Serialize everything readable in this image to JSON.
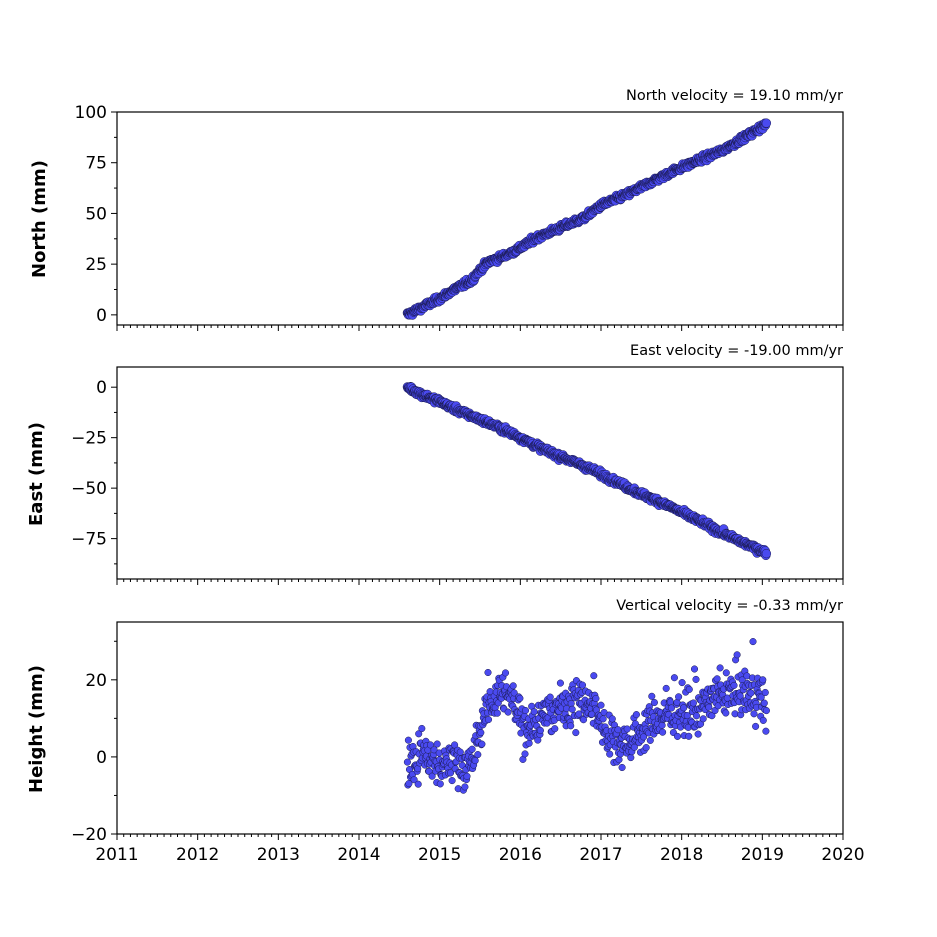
{
  "chart_data": [
    {
      "type": "scatter",
      "title": "North velocity = 19.10 mm/yr",
      "ylabel": "North (mm)",
      "xlim": [
        2011,
        2020
      ],
      "ylim": [
        -5,
        100
      ],
      "yticks": [
        0,
        25,
        50,
        75,
        100
      ],
      "ytick_labels": [
        "0",
        "25",
        "50",
        "75",
        "100"
      ],
      "marker_color": "#4a4af0",
      "series": [
        {
          "x": [
            2014.6,
            2014.8,
            2015.0,
            2015.2,
            2015.4,
            2015.45,
            2015.6,
            2015.8,
            2016.0,
            2016.2,
            2016.5,
            2016.8,
            2017.0,
            2017.3,
            2017.6,
            2017.9,
            2018.2,
            2018.5,
            2018.8,
            2019.05
          ],
          "y": [
            0,
            4,
            8,
            13,
            17,
            20,
            26,
            29,
            33,
            38,
            43,
            48,
            54,
            59,
            65,
            71,
            76,
            81,
            88,
            94
          ]
        }
      ]
    },
    {
      "type": "scatter",
      "title": "East velocity = -19.00 mm/yr",
      "ylabel": "East (mm)",
      "xlim": [
        2011,
        2020
      ],
      "ylim": [
        -95,
        10
      ],
      "yticks": [
        0,
        -25,
        -50,
        -75
      ],
      "ytick_labels": [
        "0",
        "−25",
        "−50",
        "−75"
      ],
      "marker_color": "#4a4af0",
      "series": [
        {
          "x": [
            2014.6,
            2014.8,
            2015.0,
            2015.2,
            2015.5,
            2015.8,
            2016.0,
            2016.3,
            2016.6,
            2016.9,
            2017.2,
            2017.5,
            2017.8,
            2018.1,
            2018.4,
            2018.7,
            2019.05
          ],
          "y": [
            0,
            -4,
            -7,
            -11,
            -16,
            -21,
            -25,
            -31,
            -36,
            -41,
            -47,
            -53,
            -58,
            -64,
            -70,
            -76,
            -82
          ]
        }
      ]
    },
    {
      "type": "scatter",
      "title": "Vertical velocity = -0.33 mm/yr",
      "ylabel": "Height (mm)",
      "xlabel": "",
      "xlim": [
        2011,
        2020
      ],
      "ylim": [
        -20,
        35
      ],
      "yticks": [
        -20,
        0,
        20
      ],
      "ytick_labels": [
        "−20",
        "0",
        "20"
      ],
      "xticks": [
        2011,
        2012,
        2013,
        2014,
        2015,
        2016,
        2017,
        2018,
        2019,
        2020
      ],
      "xtick_labels": [
        "2011",
        "2012",
        "2013",
        "2014",
        "2015",
        "2016",
        "2017",
        "2018",
        "2019",
        "2020"
      ],
      "marker_color": "#4a4af0",
      "series": [
        {
          "x": [
            2014.6,
            2014.8,
            2015.0,
            2015.2,
            2015.4,
            2015.55,
            2015.7,
            2015.9,
            2016.1,
            2016.3,
            2016.5,
            2016.7,
            2016.9,
            2017.1,
            2017.3,
            2017.5,
            2017.7,
            2017.9,
            2018.1,
            2018.3,
            2018.5,
            2018.7,
            2018.9,
            2019.05
          ],
          "y": [
            -2,
            1,
            -3,
            -1,
            -3,
            12,
            16,
            15,
            8,
            10,
            13,
            15,
            13,
            6,
            3,
            7,
            10,
            12,
            11,
            14,
            16,
            17,
            16,
            14
          ]
        }
      ]
    }
  ]
}
